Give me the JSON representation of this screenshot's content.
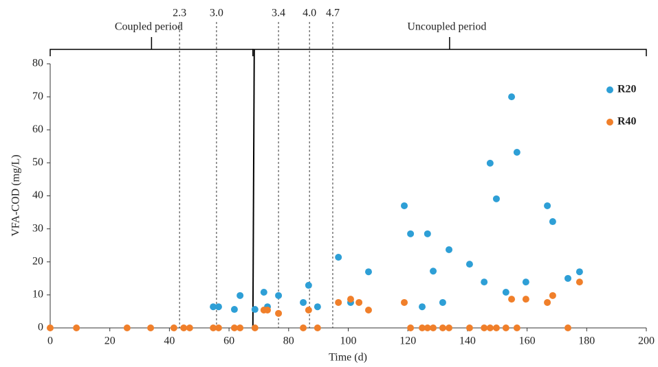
{
  "chart_data": {
    "type": "scatter",
    "x_label": "Time (d)",
    "y_label": "VFA-COD (mg/L)",
    "xlim": [
      0,
      200
    ],
    "ylim": [
      0,
      80
    ],
    "xticks": [
      0,
      20,
      40,
      60,
      80,
      100,
      120,
      140,
      160,
      180,
      200
    ],
    "yticks": [
      0,
      10,
      20,
      30,
      40,
      50,
      60,
      70,
      80
    ],
    "grid": false,
    "legend_position": "right",
    "periods": [
      {
        "label": "Coupled period",
        "range": [
          0,
          68
        ]
      },
      {
        "label": "Uncoupled period",
        "range": [
          68,
          200
        ]
      }
    ],
    "annotations": [
      {
        "x": 43.4,
        "label": "2.3"
      },
      {
        "x": 55.8,
        "label": "3.0"
      },
      {
        "x": 76.6,
        "label": "3.4"
      },
      {
        "x": 87,
        "label": "4.0"
      },
      {
        "x": 94.8,
        "label": "4.7"
      }
    ],
    "series": [
      {
        "name": "R20",
        "color": "#2e9fd6",
        "x": [
          54.7,
          56.5,
          61.8,
          63.7,
          68.7,
          71.7,
          72.9,
          76.6,
          84.9,
          86.7,
          89.7,
          96.7,
          100.8,
          106.8,
          118.8,
          120.9,
          124.8,
          126.6,
          128.5,
          131.7,
          133.8,
          140.7,
          145.6,
          147.6,
          149.7,
          152.9,
          154.8,
          156.6,
          159.6,
          166.8,
          168.6,
          173.7,
          177.6
        ],
        "values": [
          6.4,
          6.4,
          5.6,
          9.8,
          5.6,
          10.8,
          6.4,
          9.8,
          7.7,
          12.9,
          6.4,
          21.4,
          7.7,
          17,
          37,
          28.5,
          6.4,
          28.5,
          17.2,
          7.7,
          23.7,
          19.3,
          13.9,
          49.9,
          39.1,
          10.8,
          70,
          53.2,
          13.9,
          37,
          32.2,
          15,
          17
        ]
      },
      {
        "name": "R40",
        "color": "#f07f2a",
        "x": [
          0,
          8.8,
          25.8,
          33.7,
          41.5,
          44.8,
          46.8,
          54.7,
          56.5,
          61.8,
          63.7,
          68.7,
          71.7,
          72.9,
          76.6,
          84.9,
          86.7,
          89.7,
          96.7,
          100.8,
          103.6,
          106.8,
          118.8,
          120.9,
          124.8,
          126.6,
          128.5,
          131.7,
          133.8,
          140.7,
          145.6,
          147.6,
          149.7,
          152.9,
          154.8,
          156.6,
          159.6,
          166.8,
          168.6,
          173.7,
          177.6
        ],
        "values": [
          0,
          0,
          0,
          0,
          0,
          0,
          0,
          0,
          0,
          0,
          0,
          0,
          5.4,
          5.4,
          4.4,
          0,
          5.4,
          0,
          7.7,
          8.7,
          7.7,
          5.4,
          7.7,
          0,
          0,
          0,
          0,
          0,
          0,
          0,
          0,
          0,
          0,
          0,
          8.7,
          0,
          8.7,
          7.7,
          9.8,
          0,
          13.9
        ]
      }
    ]
  }
}
